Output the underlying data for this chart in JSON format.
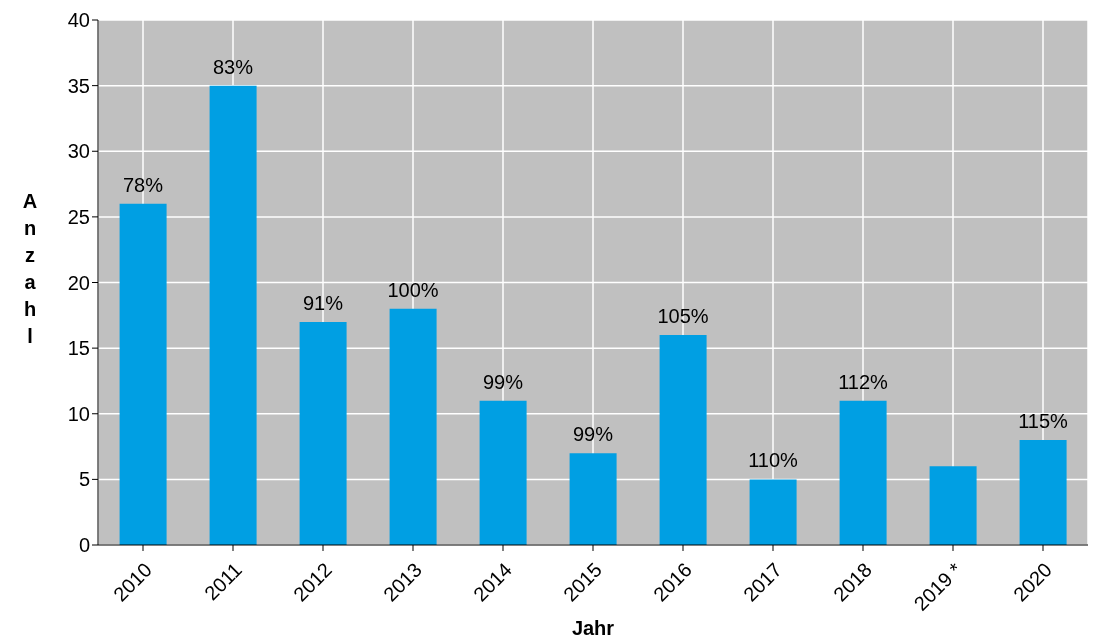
{
  "chart_data": {
    "type": "bar",
    "xlabel": "Jahr",
    "ylabel": "Anzahl",
    "categories": [
      "2010",
      "2011",
      "2012",
      "2013",
      "2014",
      "2015",
      "2016",
      "2017",
      "2018",
      "2019 *",
      "2020"
    ],
    "values": [
      26,
      35,
      17,
      18,
      11,
      7,
      16,
      5,
      11,
      6,
      8
    ],
    "annotations": [
      {
        "text": "78%",
        "x": "2010",
        "y": 26
      },
      {
        "text": "83%",
        "x": "2011",
        "y": 35
      },
      {
        "text": "91%",
        "x": "2012",
        "y": 17
      },
      {
        "text": "100%",
        "x": "2013",
        "y": 18
      },
      {
        "text": "99%",
        "x": "2014",
        "y": 11
      },
      {
        "text": "99%",
        "x": "2015",
        "y": 7
      },
      {
        "text": "105%",
        "x": "2016",
        "y": 16
      },
      {
        "text": "110%",
        "x": "2017",
        "y": 5
      },
      {
        "text": "112%",
        "x": "2018",
        "y": 11
      },
      {
        "text": "115%",
        "x": "2020",
        "y": 8
      }
    ],
    "color": "#009fe3",
    "ylim": [
      0,
      40
    ],
    "yticks": [
      0,
      5,
      10,
      15,
      20,
      25,
      30,
      35,
      40
    ],
    "grid": true
  }
}
